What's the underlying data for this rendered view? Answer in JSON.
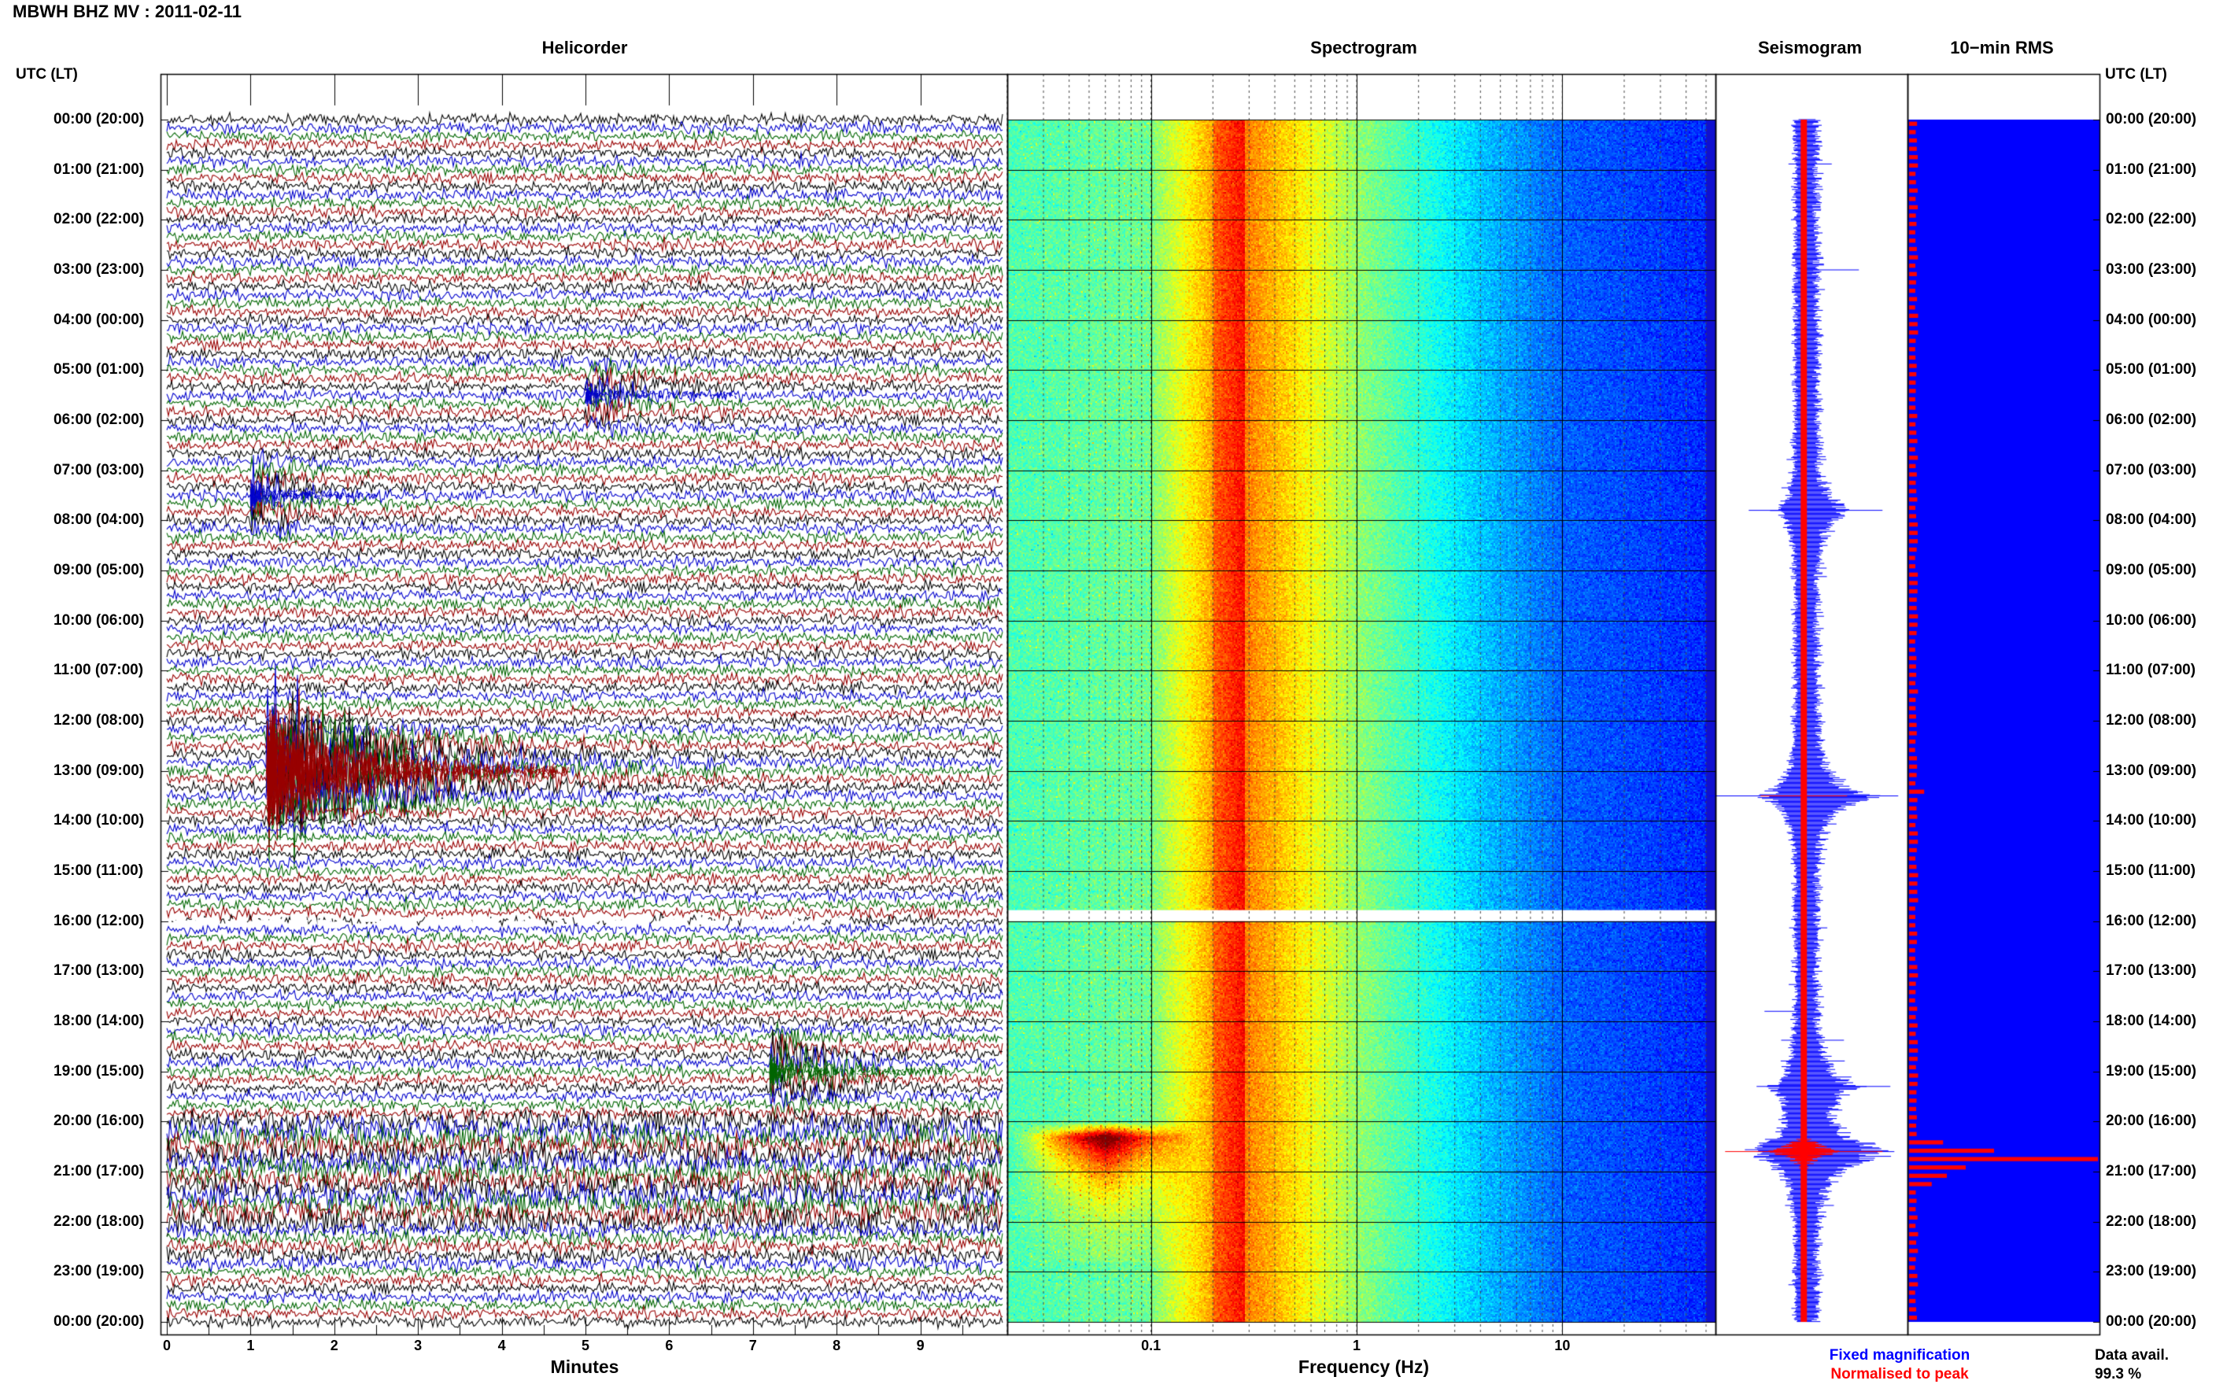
{
  "header": {
    "title": "MBWH BHZ MV : 2011-02-11"
  },
  "panels": {
    "helicorder_title": "Helicorder",
    "spectrogram_title": "Spectrogram",
    "seismogram_title": "Seismogram",
    "rms_title": "10−min RMS"
  },
  "axes": {
    "utc_label": "UTC (LT)",
    "minutes_label": "Minutes",
    "frequency_label": "Frequency (Hz)"
  },
  "legend": {
    "fixed": "Fixed magnification",
    "normalised": "Normalised to peak",
    "fixed_color": "#0000ff",
    "normalised_color": "#ff0000"
  },
  "data_avail": {
    "label": "Data avail.",
    "value": "99.3 %"
  },
  "chart_data": [
    {
      "type": "line",
      "panel": "helicorder",
      "title": "Helicorder",
      "xlabel": "Minutes",
      "ylabel": "UTC (LT)",
      "xlim": [
        0,
        10
      ],
      "x_ticks": [
        "0",
        "1",
        "2",
        "3",
        "4",
        "5",
        "6",
        "7",
        "8",
        "9"
      ],
      "y_ticks": [
        "00:00 (20:00)",
        "01:00 (21:00)",
        "02:00 (22:00)",
        "03:00 (23:00)",
        "04:00 (00:00)",
        "05:00 (01:00)",
        "06:00 (02:00)",
        "07:00 (03:00)",
        "08:00 (04:00)",
        "09:00 (05:00)",
        "10:00 (06:00)",
        "11:00 (07:00)",
        "12:00 (08:00)",
        "13:00 (09:00)",
        "14:00 (10:00)",
        "15:00 (11:00)",
        "16:00 (12:00)",
        "17:00 (13:00)",
        "18:00 (14:00)",
        "19:00 (15:00)",
        "20:00 (16:00)",
        "21:00 (17:00)",
        "22:00 (18:00)",
        "23:00 (19:00)",
        "00:00 (20:00)"
      ],
      "trace_colors": [
        "#000000",
        "#0000cc",
        "#006600",
        "#990000"
      ],
      "lines_per_hour": 6,
      "events": [
        {
          "hour": 5.5,
          "minute": 5.0,
          "amplitude": 0.6,
          "decay_min": 0.6,
          "color": "#0000cc"
        },
        {
          "hour": 7.5,
          "minute": 1.0,
          "amplitude": 0.7,
          "decay_min": 0.5,
          "color": "#0000cc"
        },
        {
          "hour": 13.0,
          "minute": 1.2,
          "amplitude": 3.5,
          "decay_min": 1.2,
          "color": "#990000"
        },
        {
          "hour": 19.0,
          "minute": 7.2,
          "amplitude": 0.9,
          "decay_min": 0.7,
          "color": "#006600"
        }
      ],
      "gap": {
        "hour": 16.0,
        "minute_from": 0,
        "minute_to": 8
      },
      "noisy_band": {
        "hour_from": 20.0,
        "hour_to": 22.0
      }
    },
    {
      "type": "heatmap",
      "panel": "spectrogram",
      "title": "Spectrogram",
      "xlabel": "Frequency (Hz)",
      "x_scale": "log",
      "xlim": [
        0.02,
        50
      ],
      "x_ticks": [
        "0.1",
        "1",
        "10"
      ],
      "colormap": "jet",
      "hours": 24,
      "features": [
        {
          "name": "microseism band",
          "freq_from": 0.2,
          "freq_to": 0.3,
          "level": "high"
        },
        {
          "name": "teleseism",
          "hour_from": 20.3,
          "hour_to": 21.0,
          "freq_from": 0.02,
          "freq_to": 0.1,
          "level": "max"
        }
      ],
      "gap_hours": [
        16.0
      ]
    },
    {
      "type": "line",
      "panel": "seismogram",
      "title": "Seismogram",
      "hours": 24,
      "series": [
        {
          "name": "Fixed magnification",
          "color": "#0000ff"
        },
        {
          "name": "Normalised to peak",
          "color": "#ff0000"
        }
      ],
      "peaks": [
        {
          "hour": 13.5,
          "amplitude": 0.7
        },
        {
          "hour": 20.6,
          "amplitude": 1.0
        },
        {
          "hour": 7.8,
          "amplitude": 0.4
        },
        {
          "hour": 19.3,
          "amplitude": 0.5
        }
      ]
    },
    {
      "type": "bar",
      "panel": "rms",
      "title": "10−min RMS",
      "orientation": "horizontal",
      "bar_count": 144,
      "color": "#ff0000",
      "background": "#0000ff",
      "baseline_value": 0.04,
      "peaks": [
        {
          "bin": 80,
          "value": 0.08
        },
        {
          "bin": 122,
          "value": 0.18
        },
        {
          "bin": 123,
          "value": 0.45
        },
        {
          "bin": 124,
          "value": 1.0
        },
        {
          "bin": 125,
          "value": 0.3
        },
        {
          "bin": 126,
          "value": 0.2
        },
        {
          "bin": 127,
          "value": 0.12
        }
      ],
      "ylabel": "UTC (LT)"
    }
  ]
}
